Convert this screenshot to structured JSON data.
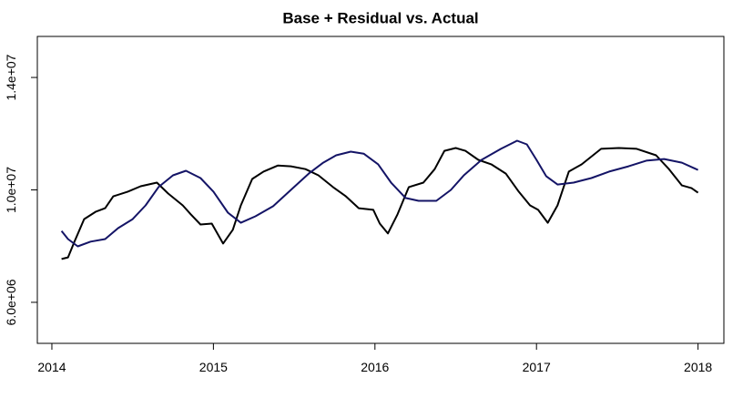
{
  "chart_data": {
    "type": "line",
    "title": "Base + Residual vs. Actual",
    "xlim": [
      2013.91,
      2018.16
    ],
    "xticks": [
      2014,
      2015,
      2016,
      2017,
      2018
    ],
    "ylim": [
      4540000,
      15460000
    ],
    "yticks": [
      {
        "value": 6000000,
        "label": "6.0e+06"
      },
      {
        "value": 10000000,
        "label": "1.0e+07"
      },
      {
        "value": 14000000,
        "label": "1.4e+07"
      }
    ],
    "series": [
      {
        "color": "#000000",
        "x": [
          2014.06,
          2014.1,
          2014.14,
          2014.2,
          2014.27,
          2014.33,
          2014.38,
          2014.47,
          2014.55,
          2014.65,
          2014.72,
          2014.81,
          2014.86,
          2014.92,
          2014.99,
          2015.06,
          2015.12,
          2015.17,
          2015.24,
          2015.31,
          2015.4,
          2015.48,
          2015.57,
          2015.65,
          2015.74,
          2015.82,
          2015.9,
          2015.99,
          2016.03,
          2016.08,
          2016.14,
          2016.21,
          2016.3,
          2016.37,
          2016.43,
          2016.5,
          2016.56,
          2016.64,
          2016.72,
          2016.81,
          2016.89,
          2016.96,
          2017.01,
          2017.07,
          2017.13,
          2017.2,
          2017.28,
          2017.4,
          2017.51,
          2017.62,
          2017.74,
          2017.82,
          2017.9,
          2017.96,
          2018.0
        ],
        "values": [
          7540000,
          7600000,
          8160000,
          8960000,
          9220000,
          9350000,
          9770000,
          9940000,
          10130000,
          10260000,
          9870000,
          9450000,
          9130000,
          8770000,
          8800000,
          8090000,
          8580000,
          9450000,
          10390000,
          10650000,
          10870000,
          10840000,
          10740000,
          10520000,
          10100000,
          9770000,
          9350000,
          9290000,
          8800000,
          8450000,
          9130000,
          10100000,
          10260000,
          10740000,
          11390000,
          11490000,
          11390000,
          11070000,
          10910000,
          10580000,
          9940000,
          9450000,
          9290000,
          8830000,
          9450000,
          10650000,
          10910000,
          11460000,
          11490000,
          11460000,
          11230000,
          10740000,
          10160000,
          10060000,
          9900000
        ]
      },
      {
        "color": "#141466",
        "x": [
          2014.06,
          2014.1,
          2014.16,
          2014.24,
          2014.33,
          2014.41,
          2014.5,
          2014.58,
          2014.66,
          2014.75,
          2014.83,
          2014.92,
          2015.0,
          2015.09,
          2015.17,
          2015.26,
          2015.37,
          2015.48,
          2015.59,
          2015.68,
          2015.76,
          2015.85,
          2015.93,
          2016.02,
          2016.1,
          2016.19,
          2016.27,
          2016.38,
          2016.47,
          2016.55,
          2016.66,
          2016.78,
          2016.88,
          2016.94,
          2017.0,
          2017.06,
          2017.13,
          2017.23,
          2017.34,
          2017.45,
          2017.57,
          2017.68,
          2017.79,
          2017.9,
          2018.0
        ],
        "values": [
          8540000,
          8250000,
          7990000,
          8160000,
          8250000,
          8640000,
          8960000,
          9450000,
          10100000,
          10520000,
          10680000,
          10420000,
          9940000,
          9190000,
          8830000,
          9060000,
          9420000,
          10000000,
          10580000,
          10970000,
          11230000,
          11360000,
          11290000,
          10910000,
          10260000,
          9710000,
          9610000,
          9610000,
          10000000,
          10520000,
          11070000,
          11460000,
          11750000,
          11620000,
          11070000,
          10490000,
          10190000,
          10260000,
          10420000,
          10650000,
          10840000,
          11040000,
          11100000,
          10970000,
          10710000
        ]
      }
    ]
  }
}
